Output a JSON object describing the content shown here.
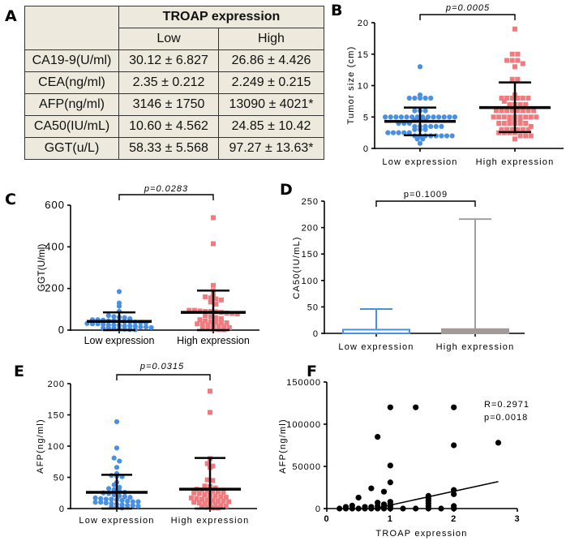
{
  "panels": {
    "a": "A",
    "b": "B",
    "c": "C",
    "d": "D",
    "e": "E",
    "f": "F"
  },
  "chart_data": [
    {
      "panel": "A",
      "type": "table",
      "title": "TROAP expression",
      "columns": [
        "Low",
        "High"
      ],
      "rows": [
        {
          "label": "CA19-9(U/ml)",
          "low": "30.12 ± 6.827",
          "high": "26.86 ± 4.426"
        },
        {
          "label": "CEA(ng/ml)",
          "low": "2.35 ± 0.212",
          "high": "2.249 ± 0.215"
        },
        {
          "label": "AFP(ng/ml)",
          "low": "3146 ± 1750",
          "high": "13090 ± 4021*"
        },
        {
          "label": "CA50(IU/mL)",
          "low": "10.60 ± 4.562",
          "high": "24.85 ± 10.42"
        },
        {
          "label": "GGT(u/L)",
          "low": "58.33 ± 5.568",
          "high": "97.27 ± 13.63*"
        }
      ]
    },
    {
      "panel": "B",
      "type": "scatter",
      "categories": [
        "Low expression",
        "High expression"
      ],
      "ylabel": "Tumor size (cm)",
      "ylim": [
        0,
        20
      ],
      "yticks": [
        0,
        5,
        10,
        15,
        20
      ],
      "pvalue": "p=0.0005",
      "series": [
        {
          "color": "#4a90e2",
          "marker": "circle",
          "mean": 4.3,
          "sd_range": [
            2.1,
            6.5
          ],
          "values": [
            13,
            8.5,
            8,
            8,
            8,
            8,
            8,
            6,
            6,
            6,
            5,
            5,
            5,
            5,
            5,
            5,
            5,
            5,
            5,
            5,
            5,
            5,
            5,
            5,
            4.5,
            4.5,
            4.5,
            4,
            4,
            4,
            3.5,
            3.5,
            3.5,
            3.5,
            3.5,
            3.5,
            3,
            3,
            3,
            2.5,
            2.5,
            2.5,
            2.5,
            2.5,
            2,
            2,
            2,
            2,
            2,
            2,
            2,
            2,
            1.5,
            1.5,
            0.8
          ]
        },
        {
          "color": "#ef7b7f",
          "marker": "square",
          "mean": 6.5,
          "sd_range": [
            2.6,
            10.5
          ],
          "values": [
            19,
            15,
            15,
            14,
            14,
            14,
            13.5,
            13,
            11,
            11,
            8.5,
            8,
            8,
            8,
            8,
            8,
            8,
            7.5,
            7,
            7,
            7,
            7,
            6,
            6,
            6,
            6,
            6,
            6,
            6,
            6,
            5,
            5,
            5,
            5,
            5,
            5,
            5,
            5,
            5,
            4.5,
            4.5,
            4.5,
            4,
            4,
            4,
            4,
            4,
            4,
            3.5,
            3,
            3,
            3,
            3,
            3,
            3,
            2.5,
            2.5,
            2.5,
            2.5,
            2,
            2,
            2,
            1.5
          ]
        }
      ]
    },
    {
      "panel": "C",
      "type": "scatter",
      "categories": [
        "Low expression",
        "High expression"
      ],
      "ylabel": "GGT(U/ml)",
      "ylim": [
        0,
        600
      ],
      "yticks": [
        0,
        200,
        400,
        600
      ],
      "pvalue": "p=0.0283",
      "series": [
        {
          "color": "#4a90e2",
          "marker": "circle",
          "mean": 42,
          "sd_range": [
            0,
            85
          ],
          "values": [
            185,
            130,
            115,
            90,
            70,
            65,
            62,
            60,
            55,
            50,
            50,
            48,
            45,
            45,
            42,
            40,
            40,
            38,
            35,
            35,
            32,
            30,
            30,
            28,
            25,
            25,
            22,
            20,
            20,
            18,
            15,
            15,
            12,
            10,
            10,
            8,
            5,
            5,
            3,
            2
          ]
        },
        {
          "color": "#ef7b7f",
          "marker": "square",
          "mean": 85,
          "sd_range": [
            0,
            190
          ],
          "values": [
            540,
            415,
            215,
            190,
            165,
            160,
            155,
            150,
            145,
            135,
            125,
            95,
            95,
            92,
            90,
            90,
            88,
            85,
            82,
            80,
            78,
            70,
            65,
            60,
            55,
            50,
            45,
            40,
            38,
            35,
            35,
            30,
            28,
            25,
            20,
            18,
            15,
            12,
            10,
            8,
            5,
            3,
            2
          ]
        }
      ]
    },
    {
      "panel": "D",
      "type": "bar",
      "categories": [
        "Low expression",
        "High expression"
      ],
      "ylabel": "CA50(IU/mL)",
      "ylim": [
        0,
        250
      ],
      "yticks": [
        0,
        50,
        100,
        150,
        200,
        250
      ],
      "pvalue": "p=0.1009",
      "values": [
        7,
        8
      ],
      "error_upper": [
        46,
        216
      ],
      "colors": [
        "#4a90e2",
        "#a39a9a"
      ],
      "error_colors": [
        "#4a90e2",
        "#a0a0a0"
      ]
    },
    {
      "panel": "E",
      "type": "scatter",
      "categories": [
        "Low expression",
        "High expression"
      ],
      "ylabel": "AFP(ng/ml)",
      "ylim": [
        0,
        200
      ],
      "yticks": [
        0,
        50,
        100,
        150,
        200
      ],
      "pvalue": "p=0.0315",
      "series": [
        {
          "color": "#4a90e2",
          "marker": "circle",
          "mean": 26,
          "sd_range": [
            0,
            54
          ],
          "values": [
            139,
            97,
            81,
            76,
            66,
            56,
            53,
            52,
            51,
            42,
            38,
            34,
            32,
            30,
            28,
            26,
            25,
            24,
            22,
            20,
            19,
            18,
            17,
            16,
            15,
            15,
            14,
            13,
            12,
            11,
            11,
            10,
            10,
            9,
            8,
            7,
            6,
            5,
            5,
            4,
            3,
            2,
            1
          ]
        },
        {
          "color": "#ef7b7f",
          "marker": "square",
          "mean": 31,
          "sd_range": [
            0,
            81
          ],
          "values": [
            188,
            154,
            80,
            72,
            68,
            66,
            46,
            45,
            36,
            35,
            33,
            31,
            30,
            29,
            28,
            27,
            26,
            25,
            24,
            22,
            21,
            20,
            19,
            18,
            17,
            16,
            15,
            14,
            13,
            12,
            12,
            11,
            10,
            9,
            8,
            7,
            6,
            5,
            4,
            3,
            2,
            1,
            1
          ]
        }
      ]
    },
    {
      "panel": "F",
      "type": "scatter",
      "xlabel": "TROAP expression",
      "ylabel": "AFP(ng/ml)",
      "xlim": [
        0,
        3
      ],
      "ylim": [
        0,
        150000
      ],
      "xticks": [
        0,
        1,
        2,
        3
      ],
      "yticks": [
        0,
        50000,
        100000,
        150000
      ],
      "r_text": "R=0.2971",
      "p_text": "p=0.0018",
      "fit_line": {
        "x": [
          0.75,
          2.7
        ],
        "y": [
          0,
          32000
        ]
      },
      "color": "#000000",
      "points": [
        [
          0.2,
          0
        ],
        [
          0.3,
          0
        ],
        [
          0.3,
          2000
        ],
        [
          0.4,
          0
        ],
        [
          0.4,
          3500
        ],
        [
          0.5,
          0
        ],
        [
          0.5,
          13000
        ],
        [
          0.6,
          0
        ],
        [
          0.6,
          2000
        ],
        [
          0.7,
          0
        ],
        [
          0.7,
          24000
        ],
        [
          0.7,
          2000
        ],
        [
          0.8,
          0
        ],
        [
          0.8,
          85000
        ],
        [
          0.8,
          7000
        ],
        [
          0.8,
          3000
        ],
        [
          0.9,
          0
        ],
        [
          0.9,
          20000
        ],
        [
          0.9,
          5000
        ],
        [
          0.9,
          2000
        ],
        [
          1,
          0
        ],
        [
          1,
          120000
        ],
        [
          1,
          51000
        ],
        [
          1,
          31000
        ],
        [
          1,
          8000
        ],
        [
          1,
          5000
        ],
        [
          1,
          3000
        ],
        [
          1,
          1000
        ],
        [
          1.2,
          0
        ],
        [
          1.4,
          0
        ],
        [
          1.4,
          120000
        ],
        [
          1.6,
          0
        ],
        [
          1.6,
          3000
        ],
        [
          1.6,
          6000
        ],
        [
          1.6,
          9000
        ],
        [
          1.6,
          12000
        ],
        [
          1.6,
          15000
        ],
        [
          1.8,
          0
        ],
        [
          2,
          0
        ],
        [
          2,
          120000
        ],
        [
          2,
          75000
        ],
        [
          2,
          22000
        ],
        [
          2,
          17000
        ],
        [
          2,
          3000
        ],
        [
          2,
          1000
        ],
        [
          2.7,
          78000
        ]
      ]
    }
  ]
}
